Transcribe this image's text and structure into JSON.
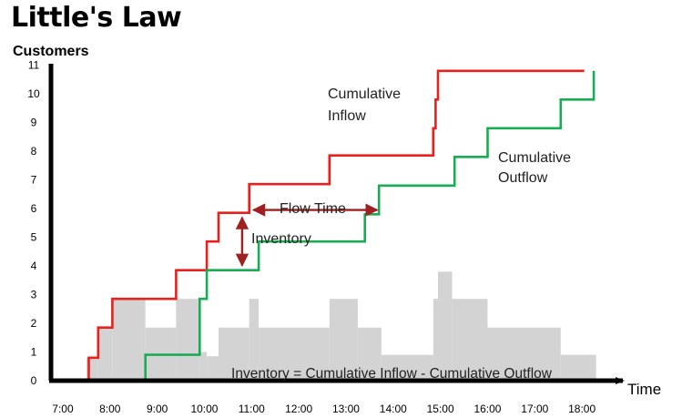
{
  "page": {
    "title": "Little's Law"
  },
  "chart_data": {
    "type": "line",
    "title": "Little's Law",
    "xlabel": "Time",
    "ylabel": "Customers",
    "xlim": [
      6.75,
      18.75
    ],
    "ylim": [
      0,
      11.3
    ],
    "x_ticks": [
      {
        "value": 7,
        "label": "7:00"
      },
      {
        "value": 8,
        "label": "8:00"
      },
      {
        "value": 9,
        "label": "9:00"
      },
      {
        "value": 10,
        "label": "10:00"
      },
      {
        "value": 11,
        "label": "11:00"
      },
      {
        "value": 12,
        "label": "12:00"
      },
      {
        "value": 13,
        "label": "13:00"
      },
      {
        "value": 14,
        "label": "14:00"
      },
      {
        "value": 15,
        "label": "15:00"
      },
      {
        "value": 16,
        "label": "16:00"
      },
      {
        "value": 17,
        "label": "17:00"
      },
      {
        "value": 18,
        "label": "18:00"
      }
    ],
    "y_ticks": [
      0,
      1,
      2,
      3,
      4,
      5,
      6,
      7,
      8,
      9,
      10,
      11
    ],
    "grid": false,
    "series": [
      {
        "name": "Cumulative Inflow",
        "color": "#e8211d",
        "step": true,
        "points": [
          [
            6.75,
            0
          ],
          [
            7.55,
            0
          ],
          [
            7.55,
            0.8
          ],
          [
            7.75,
            0.8
          ],
          [
            7.75,
            1.85
          ],
          [
            8.05,
            1.85
          ],
          [
            8.05,
            2.85
          ],
          [
            9.4,
            2.85
          ],
          [
            9.4,
            3.85
          ],
          [
            10.05,
            3.85
          ],
          [
            10.05,
            4.85
          ],
          [
            10.3,
            4.85
          ],
          [
            10.3,
            5.85
          ],
          [
            10.95,
            5.85
          ],
          [
            10.95,
            6.85
          ],
          [
            12.65,
            6.85
          ],
          [
            12.65,
            7.85
          ],
          [
            14.85,
            7.85
          ],
          [
            14.85,
            8.8
          ],
          [
            14.9,
            8.8
          ],
          [
            14.9,
            9.8
          ],
          [
            14.95,
            9.8
          ],
          [
            14.95,
            10.8
          ],
          [
            18.05,
            10.8
          ]
        ]
      },
      {
        "name": "Cumulative Outflow",
        "color": "#19ac54",
        "step": true,
        "points": [
          [
            6.75,
            0
          ],
          [
            8.75,
            0
          ],
          [
            8.75,
            0.9
          ],
          [
            9.9,
            0.9
          ],
          [
            9.9,
            2.85
          ],
          [
            10.05,
            2.85
          ],
          [
            10.05,
            3.85
          ],
          [
            11.15,
            3.85
          ],
          [
            11.15,
            4.85
          ],
          [
            13.4,
            4.85
          ],
          [
            13.4,
            5.8
          ],
          [
            13.7,
            5.8
          ],
          [
            13.7,
            6.8
          ],
          [
            15.3,
            6.8
          ],
          [
            15.3,
            7.8
          ],
          [
            16.0,
            7.8
          ],
          [
            16.0,
            8.8
          ],
          [
            17.55,
            8.8
          ],
          [
            17.55,
            9.8
          ],
          [
            18.25,
            9.8
          ],
          [
            18.25,
            10.8
          ]
        ]
      }
    ],
    "inventory_area": {
      "label": "Inventory = Cumulative Inflow - Cumulative Outflow",
      "color": "#d3d3d3",
      "steps": [
        [
          7.5,
          7.75,
          0.8
        ],
        [
          7.75,
          8.05,
          1.85
        ],
        [
          8.05,
          8.75,
          2.85
        ],
        [
          8.75,
          9.4,
          1.85
        ],
        [
          9.4,
          9.9,
          2.85
        ],
        [
          9.9,
          10.05,
          1.0
        ],
        [
          10.05,
          10.3,
          0.85
        ],
        [
          10.3,
          10.95,
          1.85
        ],
        [
          10.95,
          11.15,
          2.85
        ],
        [
          11.15,
          12.65,
          1.85
        ],
        [
          12.65,
          13.25,
          2.85
        ],
        [
          13.25,
          13.75,
          1.85
        ],
        [
          13.75,
          14.85,
          0.9
        ],
        [
          14.85,
          14.95,
          2.85
        ],
        [
          14.95,
          15.25,
          3.8
        ],
        [
          15.25,
          16.0,
          2.85
        ],
        [
          16.0,
          16.3,
          1.85
        ],
        [
          16.3,
          17.55,
          1.85
        ],
        [
          17.55,
          18.3,
          0.9
        ]
      ]
    },
    "annotations": [
      {
        "text": "Cumulative",
        "role": "inflow-label-line1"
      },
      {
        "text": "Inflow",
        "role": "inflow-label-line2"
      },
      {
        "text": "Cumulative",
        "role": "outflow-label-line1"
      },
      {
        "text": "Outflow",
        "role": "outflow-label-line2"
      },
      {
        "text": "Flow Time",
        "role": "flow-time",
        "x": [
          11.0,
          13.7
        ],
        "y": 5.95,
        "color": "#9e2020"
      },
      {
        "text": "Inventory",
        "role": "inventory",
        "x": 10.8,
        "y": [
          3.95,
          5.75
        ],
        "color": "#9e2020"
      }
    ]
  }
}
